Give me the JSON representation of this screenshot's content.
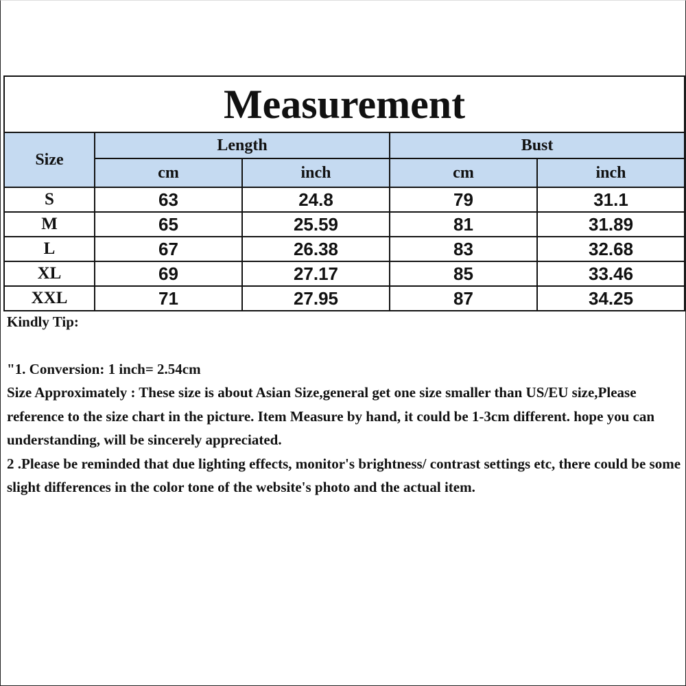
{
  "title": "Measurement",
  "headers": {
    "size": "Size",
    "groups": [
      "Length",
      "Bust"
    ],
    "units": [
      "cm",
      "inch",
      "cm",
      "inch"
    ]
  },
  "rows": [
    {
      "size": "S",
      "values": [
        "63",
        "24.8",
        "79",
        "31.1"
      ]
    },
    {
      "size": "M",
      "values": [
        "65",
        "25.59",
        "81",
        "31.89"
      ]
    },
    {
      "size": "L",
      "values": [
        "67",
        "26.38",
        "83",
        "32.68"
      ]
    },
    {
      "size": "XL",
      "values": [
        "69",
        "27.17",
        "85",
        "33.46"
      ]
    },
    {
      "size": "XXL",
      "values": [
        "71",
        "27.95",
        "87",
        "34.25"
      ]
    }
  ],
  "notes": {
    "heading": "Kindly Tip:",
    "lines": [
      "\"1. Conversion:  1 inch= 2.54cm",
      "Size Approximately :  These size is about Asian Size,general get one size smaller than US/EU size,Please reference to the size chart in the picture. Item Measure by hand, it could be 1-3cm different. hope you can understanding, will be sincerely appreciated.",
      "2 .Please be reminded that due lighting effects, monitor's brightness/ contrast settings etc, there could be some slight differences in the color tone of the website's photo and the actual item."
    ]
  },
  "colors": {
    "header_bg": "#c5daf1",
    "border": "#111111"
  }
}
